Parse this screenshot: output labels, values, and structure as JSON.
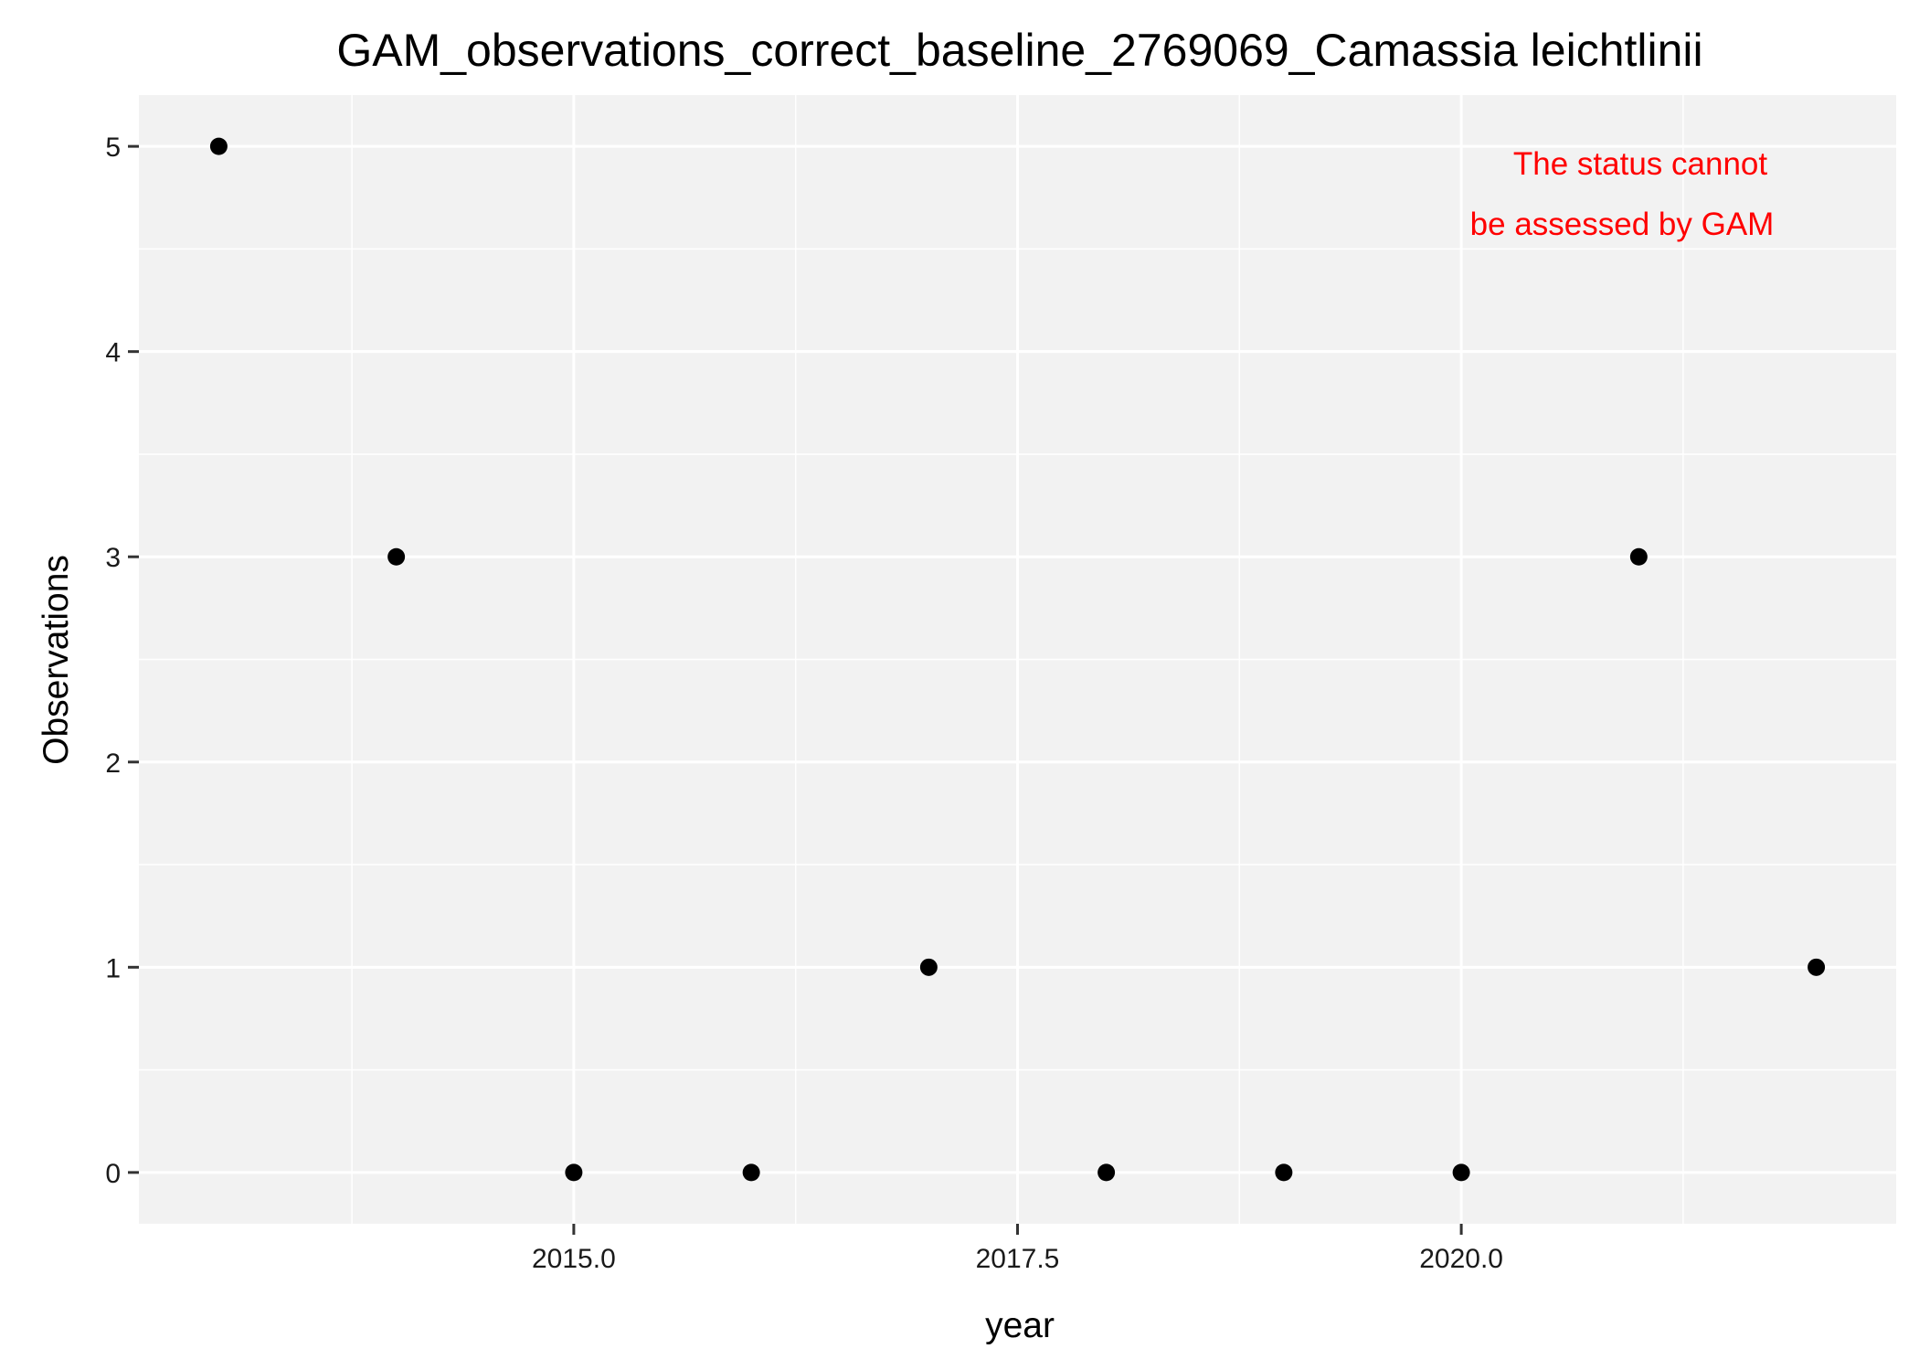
{
  "chart_data": {
    "type": "scatter",
    "title": "GAM_observations_correct_baseline_2769069_Camassia leichtlinii",
    "xlabel": "year",
    "ylabel": "Observations",
    "x_ticks": [
      2015.0,
      2017.5,
      2020.0
    ],
    "x_tick_labels": [
      "2015.0",
      "2017.5",
      "2020.0"
    ],
    "y_ticks": [
      0,
      1,
      2,
      3,
      4,
      5
    ],
    "y_tick_labels": [
      "0",
      "1",
      "2",
      "3",
      "4",
      "5"
    ],
    "xlim": [
      2012.55,
      2022.45
    ],
    "ylim": [
      -0.25,
      5.25
    ],
    "grid": true,
    "panel_color": "#f2f2f2",
    "point_color": "#000000",
    "annotation": {
      "lines": [
        "The status cannot",
        "be assessed by GAM"
      ],
      "color": "#ff0000"
    },
    "points": [
      {
        "x": 2013,
        "y": 5
      },
      {
        "x": 2014,
        "y": 3
      },
      {
        "x": 2015,
        "y": 0
      },
      {
        "x": 2016,
        "y": 0
      },
      {
        "x": 2017,
        "y": 1
      },
      {
        "x": 2018,
        "y": 0
      },
      {
        "x": 2019,
        "y": 0
      },
      {
        "x": 2020,
        "y": 0
      },
      {
        "x": 2021,
        "y": 3
      },
      {
        "x": 2022,
        "y": 1
      }
    ]
  }
}
